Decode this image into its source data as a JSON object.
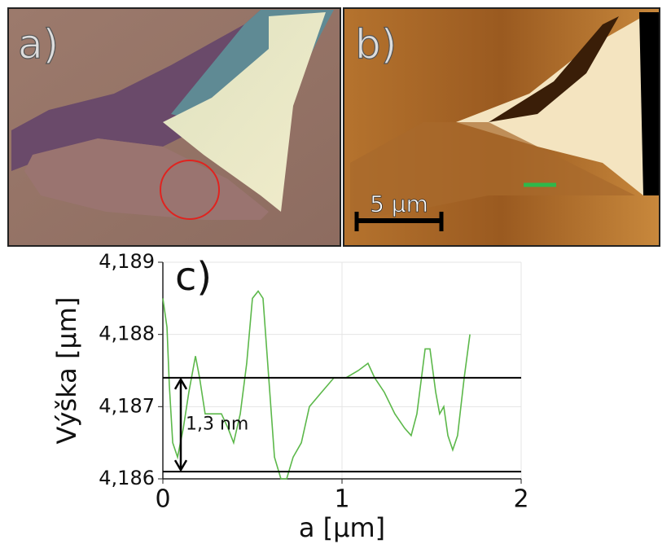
{
  "panels": {
    "a": {
      "label": "a)"
    },
    "b": {
      "label": "b)",
      "scale_bar": "5 µm"
    }
  },
  "chart_data": {
    "type": "line",
    "panel_label": "c)",
    "x_label": "a [µm]",
    "y_label": "Výška [µm]",
    "xlim": [
      0,
      2
    ],
    "xticks": [
      0,
      1,
      2
    ],
    "ylim": [
      4.186,
      4.189
    ],
    "yticks": [
      {
        "value": 4.186,
        "label": "4,186"
      },
      {
        "value": 4.187,
        "label": "4,187"
      },
      {
        "value": 4.188,
        "label": "4,188"
      },
      {
        "value": 4.189,
        "label": "4,189"
      }
    ],
    "grid": true,
    "series": [
      {
        "color": "#5cb84a",
        "x": [
          0,
          0.023,
          0.036,
          0.055,
          0.082,
          0.114,
          0.145,
          0.182,
          0.205,
          0.236,
          0.282,
          0.327,
          0.364,
          0.395,
          0.432,
          0.468,
          0.5,
          0.532,
          0.559,
          0.591,
          0.623,
          0.659,
          0.691,
          0.727,
          0.773,
          0.818,
          0.886,
          0.955,
          1.023,
          1.091,
          1.145,
          1.182,
          1.236,
          1.295,
          1.35,
          1.386,
          1.418,
          1.464,
          1.491,
          1.523,
          1.545,
          1.568,
          1.591,
          1.618,
          1.645,
          1.682,
          1.714
        ],
        "values": [
          4.1885,
          4.1881,
          4.1873,
          4.1865,
          4.1863,
          4.1867,
          4.1872,
          4.1877,
          4.1874,
          4.1869,
          4.1869,
          4.1869,
          4.1867,
          4.1865,
          4.1869,
          4.1876,
          4.1885,
          4.1886,
          4.1885,
          4.1874,
          4.1863,
          4.186,
          4.186,
          4.1863,
          4.1865,
          4.187,
          4.1872,
          4.1874,
          4.1874,
          4.1875,
          4.1876,
          4.1874,
          4.1872,
          4.1869,
          4.1867,
          4.1866,
          4.1869,
          4.1878,
          4.1878,
          4.1872,
          4.1869,
          4.187,
          4.1866,
          4.1864,
          4.1866,
          4.1874,
          4.188
        ]
      }
    ],
    "reference_lines": [
      4.1874,
      4.1861
    ],
    "annotation": "1,3 nm",
    "annotation_x": 0.1
  }
}
